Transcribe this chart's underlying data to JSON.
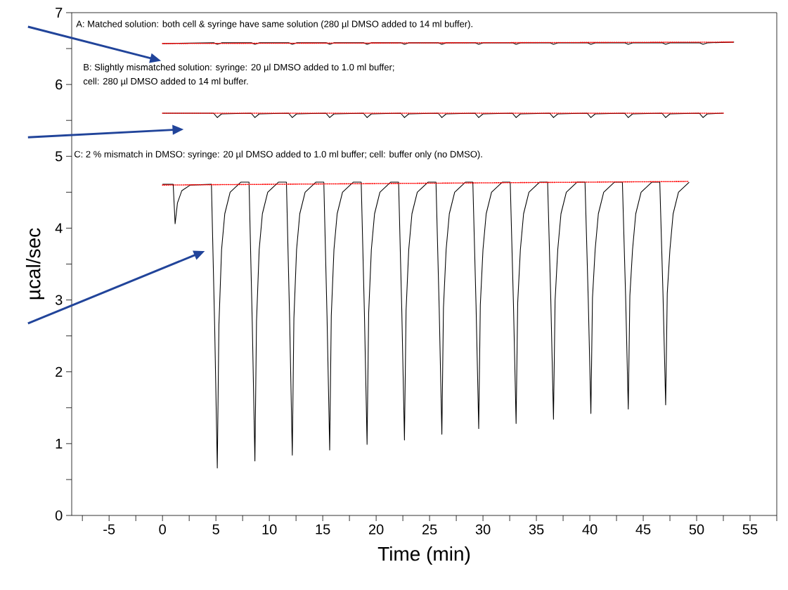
{
  "chart_data": {
    "type": "line",
    "xlabel": "Time (min)",
    "ylabel": "µcal/sec",
    "xlim": [
      -8.5,
      57.5
    ],
    "ylim": [
      0,
      7
    ],
    "xticks": [
      {
        "value": -7.5,
        "label": null
      },
      -5,
      {
        "value": -2.5,
        "label": null
      },
      0,
      {
        "value": 2.5,
        "label": null
      },
      5,
      {
        "value": 7.5,
        "label": null
      },
      10,
      {
        "value": 12.5,
        "label": null
      },
      15,
      {
        "value": 17.5,
        "label": null
      },
      20,
      {
        "value": 22.5,
        "label": null
      },
      25,
      {
        "value": 27.5,
        "label": null
      },
      30,
      {
        "value": 32.5,
        "label": null
      },
      35,
      {
        "value": 37.5,
        "label": null
      },
      40,
      {
        "value": 42.5,
        "label": null
      },
      45,
      {
        "value": 47.5,
        "label": null
      },
      50,
      {
        "value": 52.5,
        "label": null
      },
      55,
      {
        "value": 57.5,
        "label": null
      }
    ],
    "yticks": [
      0,
      {
        "value": 0.5,
        "label": null
      },
      1,
      {
        "value": 1.5,
        "label": null
      },
      2,
      {
        "value": 2.5,
        "label": null
      },
      3,
      {
        "value": 3.5,
        "label": null
      },
      4,
      {
        "value": 4.5,
        "label": null
      },
      5,
      {
        "value": 5.5,
        "label": null
      },
      6,
      {
        "value": 6.5,
        "label": null
      },
      7
    ],
    "annotations": [
      "A: Matched solution: both cell & syringe have same solution (280 µl DMSO added to 14 ml buffer).",
      "B: Slightly mismatched solution: syringe: 20 µl DMSO added to 1.0 ml buffer;",
      "cell: 280 µl DMSO added to 14 ml buffer.",
      "C: 2 % mismatch in DMSO: syringe: 20 µl DMSO added to 1.0 ml buffer; cell: buffer only (no DMSO)."
    ],
    "series": [
      {
        "color": "#000000",
        "line_style": "solid",
        "x": [
          0,
          4.83,
          5.13,
          5.53,
          8.35,
          8.65,
          9.05,
          11.85,
          12.15,
          12.55,
          15.35,
          15.65,
          16.05,
          18.85,
          19.15,
          19.55,
          22.35,
          22.65,
          23.05,
          25.85,
          26.15,
          26.55,
          29.3,
          29.6,
          30.0,
          32.8,
          33.1,
          33.5,
          36.3,
          36.6,
          37.0,
          39.8,
          40.1,
          40.5,
          43.3,
          43.6,
          44.0,
          46.8,
          47.1,
          47.5,
          50.3,
          50.6,
          51.0,
          53.5
        ],
        "values": [
          6.57,
          6.58,
          6.56,
          6.58,
          6.58,
          6.56,
          6.58,
          6.58,
          6.56,
          6.58,
          6.58,
          6.56,
          6.58,
          6.58,
          6.56,
          6.58,
          6.58,
          6.56,
          6.58,
          6.58,
          6.56,
          6.58,
          6.58,
          6.56,
          6.58,
          6.58,
          6.56,
          6.58,
          6.58,
          6.56,
          6.58,
          6.58,
          6.56,
          6.58,
          6.58,
          6.56,
          6.58,
          6.58,
          6.56,
          6.58,
          6.58,
          6.56,
          6.58,
          6.59
        ]
      },
      {
        "color": "#ff0000",
        "line_style": "dotted",
        "x": [
          0,
          53.5
        ],
        "values": [
          6.57,
          6.59
        ]
      },
      {
        "color": "#000000",
        "line_style": "solid",
        "x": [
          0,
          4.78,
          5.13,
          5.53,
          8.3,
          8.65,
          9.05,
          11.8,
          12.15,
          12.55,
          15.3,
          15.65,
          16.05,
          18.8,
          19.15,
          19.55,
          22.3,
          22.65,
          23.05,
          25.8,
          26.15,
          26.55,
          29.25,
          29.6,
          30.0,
          32.75,
          33.1,
          33.5,
          36.25,
          36.6,
          37.0,
          39.75,
          40.1,
          40.5,
          43.25,
          43.6,
          44.0,
          46.75,
          47.1,
          47.5,
          50.25,
          50.6,
          51.0,
          52.5
        ],
        "values": [
          5.6,
          5.6,
          5.54,
          5.59,
          5.6,
          5.54,
          5.59,
          5.6,
          5.54,
          5.59,
          5.6,
          5.54,
          5.59,
          5.6,
          5.54,
          5.59,
          5.6,
          5.54,
          5.59,
          5.6,
          5.54,
          5.59,
          5.6,
          5.54,
          5.59,
          5.6,
          5.54,
          5.59,
          5.6,
          5.54,
          5.59,
          5.6,
          5.54,
          5.59,
          5.6,
          5.54,
          5.59,
          5.6,
          5.54,
          5.59,
          5.6,
          5.54,
          5.59,
          5.6
        ]
      },
      {
        "color": "#ff0000",
        "line_style": "dotted",
        "x": [
          0,
          52.5
        ],
        "values": [
          5.6,
          5.6
        ]
      },
      {
        "color": "#000000",
        "line_style": "solid",
        "x": [
          0,
          1.0,
          1.18,
          1.4,
          1.8,
          2.6,
          4.58,
          4.88,
          5.13,
          5.28,
          5.53,
          5.83,
          6.33,
          7.33,
          8.1,
          8.4,
          8.65,
          8.8,
          9.05,
          9.35,
          9.85,
          10.85,
          11.6,
          11.9,
          12.15,
          12.3,
          12.55,
          12.85,
          13.35,
          14.35,
          15.1,
          15.4,
          15.65,
          15.8,
          16.05,
          16.35,
          16.85,
          17.85,
          18.6,
          18.9,
          19.15,
          19.3,
          19.55,
          19.85,
          20.35,
          21.35,
          22.1,
          22.4,
          22.65,
          22.8,
          23.05,
          23.35,
          23.85,
          24.85,
          25.6,
          25.9,
          26.15,
          26.3,
          26.55,
          26.85,
          27.35,
          28.35,
          29.05,
          29.35,
          29.6,
          29.75,
          30.0,
          30.3,
          30.8,
          31.8,
          32.55,
          32.85,
          33.1,
          33.25,
          33.5,
          33.8,
          34.3,
          35.3,
          36.05,
          36.35,
          36.6,
          36.75,
          37.0,
          37.3,
          37.8,
          38.8,
          39.55,
          39.85,
          40.1,
          40.25,
          40.5,
          40.8,
          41.3,
          42.3,
          43.05,
          43.35,
          43.6,
          43.75,
          44.0,
          44.3,
          44.8,
          45.8,
          46.55,
          46.85,
          47.1,
          47.25,
          47.5,
          47.8,
          48.3,
          49.3
        ],
        "values": [
          4.61,
          4.61,
          4.06,
          4.35,
          4.52,
          4.6,
          4.61,
          2.65,
          0.66,
          2.65,
          3.7,
          4.2,
          4.5,
          4.64,
          4.64,
          2.7,
          0.76,
          2.7,
          3.7,
          4.2,
          4.5,
          4.64,
          4.64,
          2.74,
          0.84,
          2.74,
          3.7,
          4.2,
          4.5,
          4.64,
          4.64,
          2.78,
          0.91,
          2.78,
          3.7,
          4.2,
          4.5,
          4.64,
          4.64,
          2.82,
          0.99,
          2.82,
          3.7,
          4.2,
          4.5,
          4.64,
          4.64,
          2.85,
          1.05,
          2.85,
          3.7,
          4.2,
          4.5,
          4.64,
          4.64,
          2.89,
          1.13,
          2.89,
          3.7,
          4.2,
          4.5,
          4.64,
          4.64,
          2.93,
          1.21,
          2.93,
          3.7,
          4.2,
          4.5,
          4.64,
          4.64,
          2.96,
          1.28,
          2.96,
          3.7,
          4.2,
          4.5,
          4.64,
          4.64,
          2.99,
          1.34,
          2.99,
          3.7,
          4.2,
          4.5,
          4.64,
          4.64,
          3.03,
          1.42,
          3.03,
          3.7,
          4.2,
          4.5,
          4.64,
          4.64,
          3.06,
          1.48,
          3.06,
          3.7,
          4.2,
          4.5,
          4.64,
          4.64,
          3.09,
          1.54,
          3.09,
          3.7,
          4.2,
          4.5,
          4.64
        ]
      },
      {
        "color": "#ff0000",
        "line_style": "dotted",
        "x": [
          0,
          49.3
        ],
        "values": [
          4.6,
          4.65
        ]
      }
    ]
  }
}
